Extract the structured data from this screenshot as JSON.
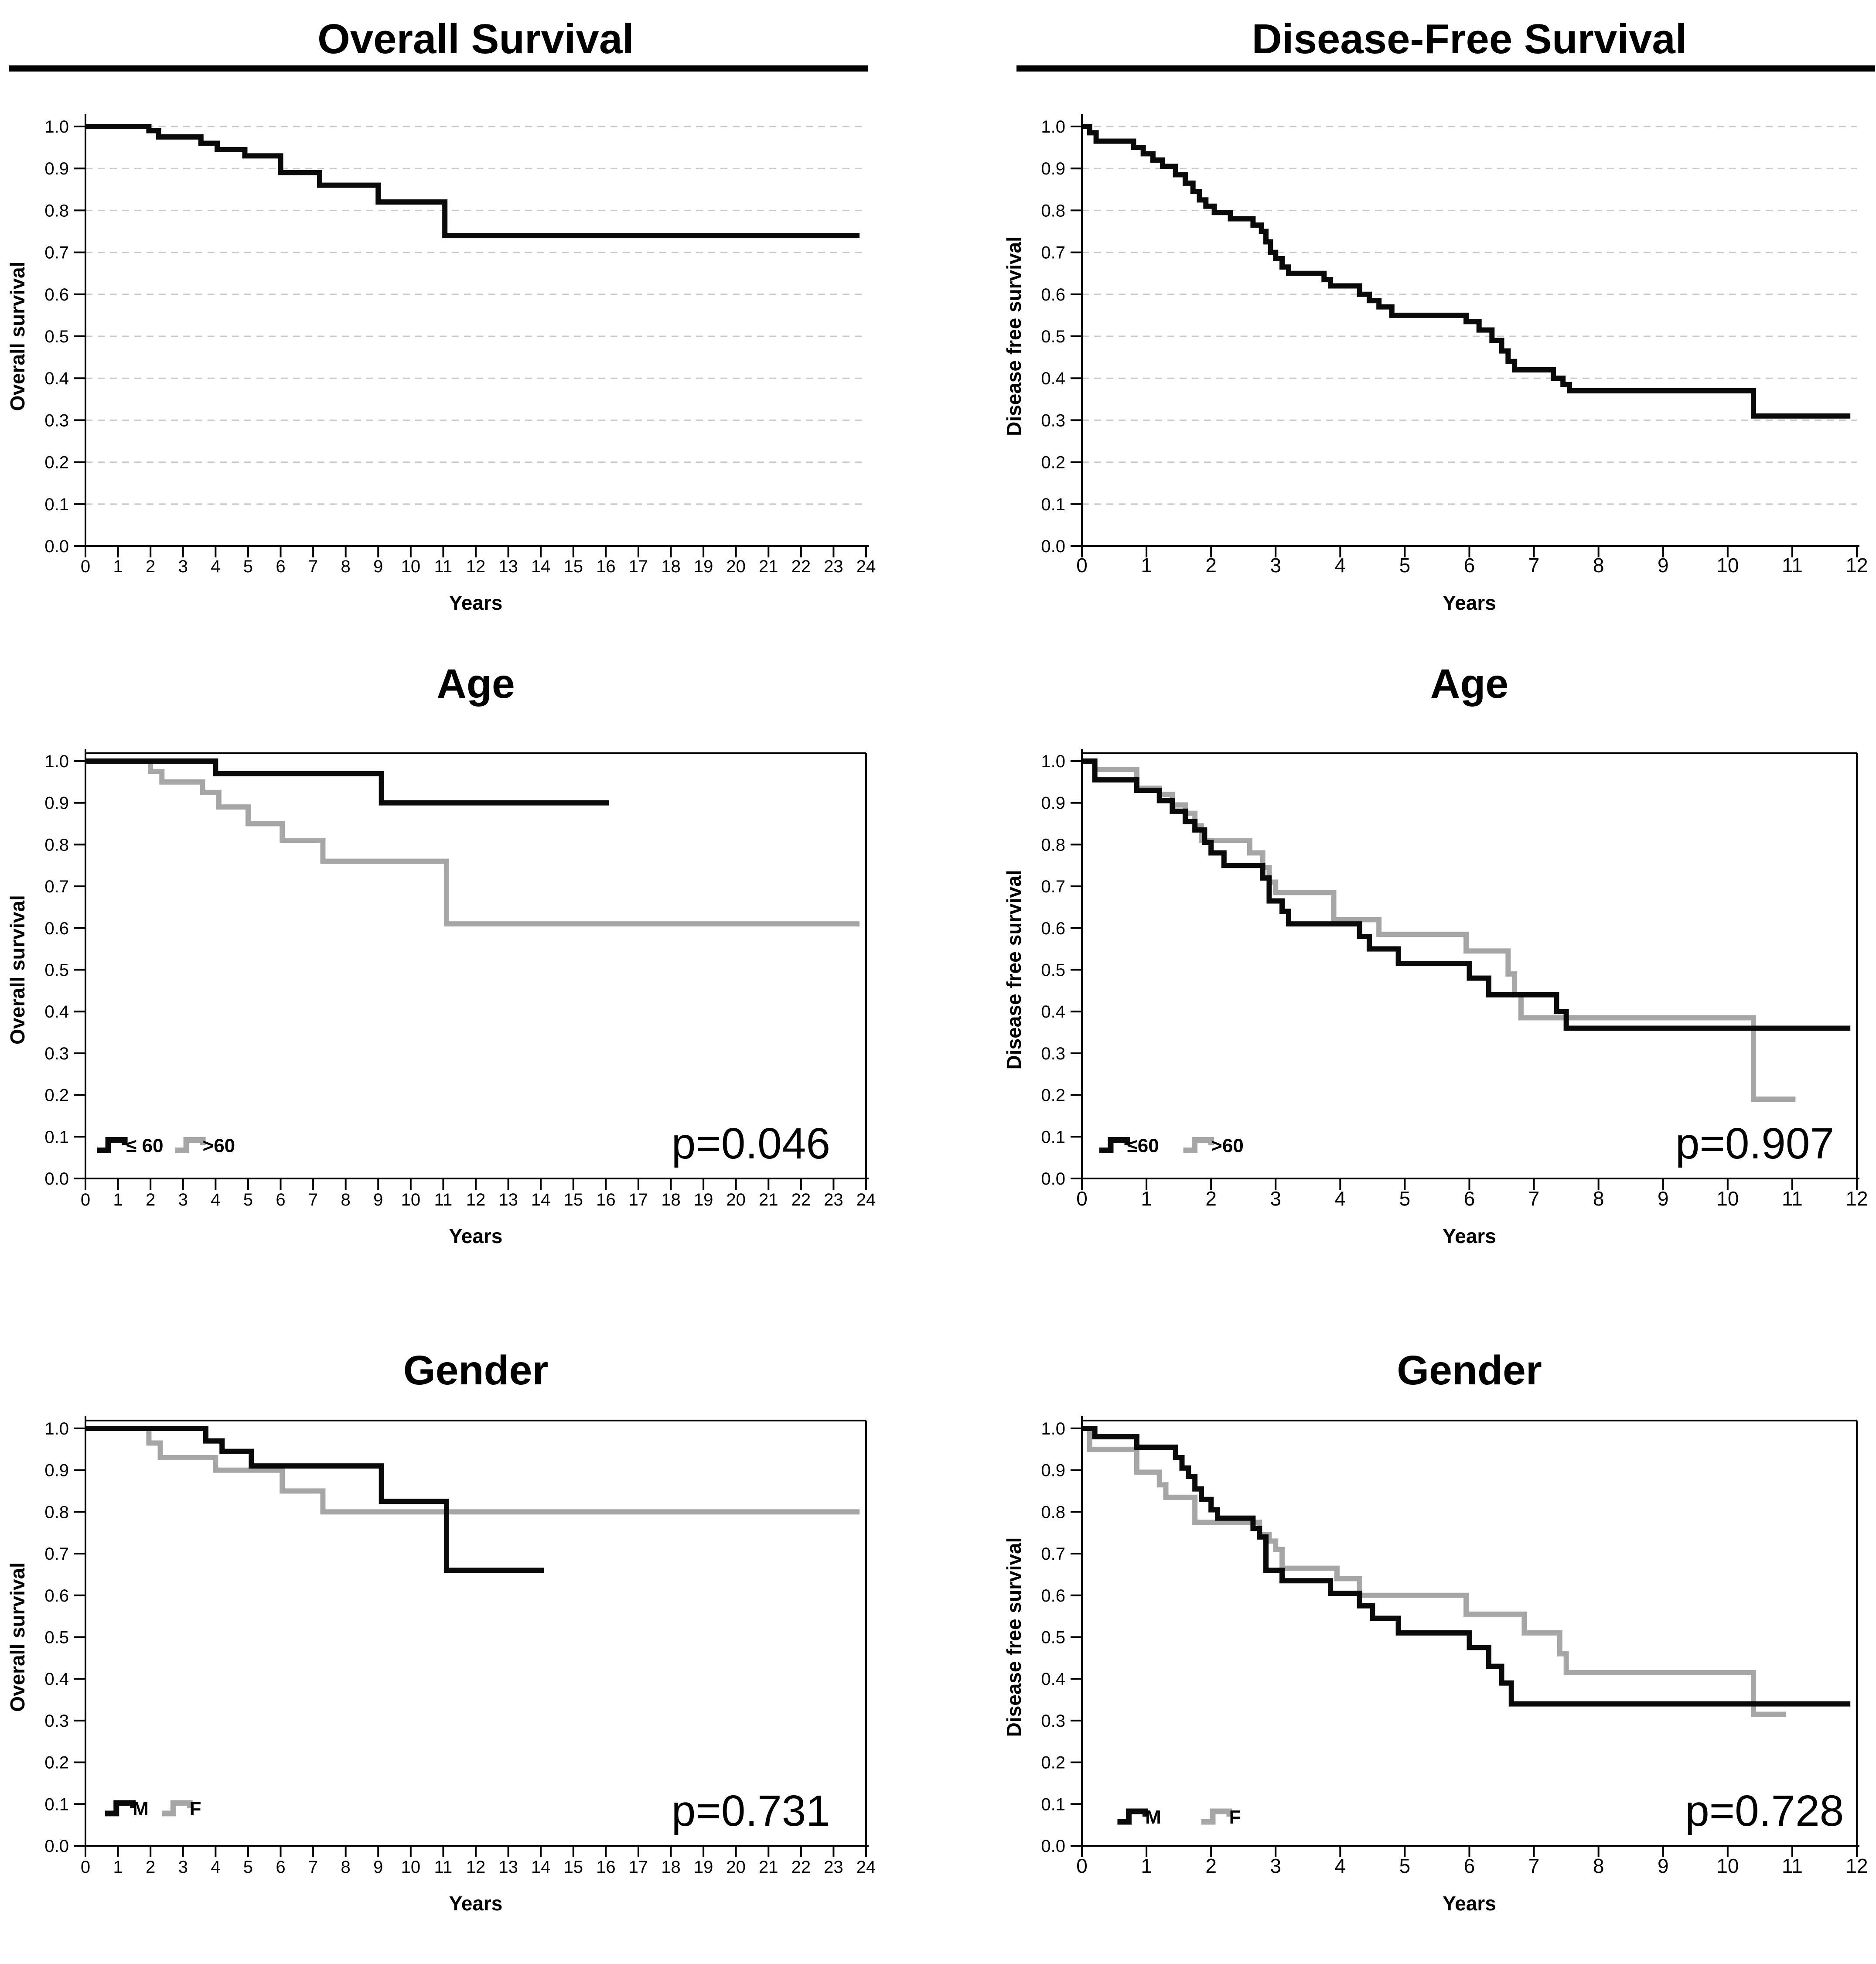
{
  "figure": {
    "background": "#ffffff",
    "colors": {
      "black": "#0a0a0a",
      "gray": "#a6a6a6",
      "grid": "#c9c9c9",
      "axis": "#000000"
    }
  },
  "chart_data": [
    {
      "id": "overall-survival-all",
      "type": "line",
      "title": "Overall Survival",
      "title_rule": true,
      "xlabel": "Years",
      "ylabel": "Overall survival",
      "xlim": [
        0,
        24
      ],
      "ylim": [
        0.0,
        1.0
      ],
      "xticks": [
        0,
        1,
        2,
        3,
        4,
        5,
        6,
        7,
        8,
        9,
        10,
        11,
        12,
        13,
        14,
        15,
        16,
        17,
        18,
        19,
        20,
        21,
        22,
        23,
        24
      ],
      "yticks": [
        "0.0",
        "0.1",
        "0.2",
        "0.3",
        "0.4",
        "0.5",
        "0.6",
        "0.7",
        "0.8",
        "0.9",
        "1.0"
      ],
      "grid": true,
      "frame": false,
      "pvalue": null,
      "legend": null,
      "series": [
        {
          "name": "all-patients",
          "color": "#0a0a0a",
          "end": 23.8,
          "steps": [
            [
              0,
              1.0
            ],
            [
              1.95,
              0.99
            ],
            [
              2.25,
              0.975
            ],
            [
              3.55,
              0.96
            ],
            [
              4.05,
              0.945
            ],
            [
              4.9,
              0.93
            ],
            [
              6.0,
              0.89
            ],
            [
              7.2,
              0.86
            ],
            [
              9.0,
              0.82
            ],
            [
              11.05,
              0.74
            ]
          ]
        }
      ]
    },
    {
      "id": "disease-free-survival-all",
      "type": "line",
      "title": "Disease-Free Survival",
      "title_rule": true,
      "xlabel": "Years",
      "ylabel": "Disease free survival",
      "xlim": [
        0,
        12
      ],
      "ylim": [
        0.0,
        1.0
      ],
      "xticks": [
        0,
        1,
        2,
        3,
        4,
        5,
        6,
        7,
        8,
        9,
        10,
        11,
        12
      ],
      "yticks": [
        "0.0",
        "0.1",
        "0.2",
        "0.3",
        "0.4",
        "0.5",
        "0.6",
        "0.7",
        "0.8",
        "0.9",
        "1.0"
      ],
      "grid": true,
      "frame": false,
      "pvalue": null,
      "legend": null,
      "series": [
        {
          "name": "all-patients",
          "color": "#0a0a0a",
          "end": 11.9,
          "steps": [
            [
              0,
              1.0
            ],
            [
              0.12,
              0.985
            ],
            [
              0.22,
              0.965
            ],
            [
              0.8,
              0.95
            ],
            [
              0.95,
              0.935
            ],
            [
              1.1,
              0.92
            ],
            [
              1.25,
              0.905
            ],
            [
              1.45,
              0.885
            ],
            [
              1.6,
              0.865
            ],
            [
              1.72,
              0.845
            ],
            [
              1.82,
              0.825
            ],
            [
              1.92,
              0.81
            ],
            [
              2.05,
              0.795
            ],
            [
              2.3,
              0.78
            ],
            [
              2.65,
              0.765
            ],
            [
              2.78,
              0.75
            ],
            [
              2.85,
              0.725
            ],
            [
              2.92,
              0.7
            ],
            [
              3.0,
              0.685
            ],
            [
              3.1,
              0.665
            ],
            [
              3.2,
              0.65
            ],
            [
              3.75,
              0.635
            ],
            [
              3.85,
              0.62
            ],
            [
              4.3,
              0.6
            ],
            [
              4.45,
              0.585
            ],
            [
              4.6,
              0.57
            ],
            [
              4.8,
              0.55
            ],
            [
              5.95,
              0.535
            ],
            [
              6.15,
              0.515
            ],
            [
              6.35,
              0.49
            ],
            [
              6.5,
              0.465
            ],
            [
              6.6,
              0.44
            ],
            [
              6.7,
              0.42
            ],
            [
              7.3,
              0.4
            ],
            [
              7.45,
              0.385
            ],
            [
              7.55,
              0.37
            ],
            [
              10.4,
              0.31
            ]
          ]
        }
      ]
    },
    {
      "id": "age-overall-survival",
      "type": "line",
      "title": "Age",
      "title_rule": false,
      "xlabel": "Years",
      "ylabel": "Overall survival",
      "xlim": [
        0,
        24
      ],
      "ylim": [
        0.0,
        1.0
      ],
      "xticks": [
        0,
        1,
        2,
        3,
        4,
        5,
        6,
        7,
        8,
        9,
        10,
        11,
        12,
        13,
        14,
        15,
        16,
        17,
        18,
        19,
        20,
        21,
        22,
        23,
        24
      ],
      "yticks": [
        "0.0",
        "0.1",
        "0.2",
        "0.3",
        "0.4",
        "0.5",
        "0.6",
        "0.7",
        "0.8",
        "0.9",
        "1.0"
      ],
      "grid": false,
      "frame": true,
      "pvalue": {
        "text": "p=0.046",
        "x": 22.9,
        "y": 0.048
      },
      "legend": {
        "y": 0.08,
        "entries": [
          {
            "label": "≤ 60",
            "color": "#0a0a0a",
            "glyph_x": 0.35,
            "text_x": 1.25
          },
          {
            "label": ">60",
            "color": "#a6a6a6",
            "glyph_x": 2.75,
            "text_x": 3.6
          }
        ]
      },
      "series": [
        {
          "name": "over-60",
          "color": "#a6a6a6",
          "end": 23.8,
          "steps": [
            [
              0,
              1.0
            ],
            [
              2.0,
              0.975
            ],
            [
              2.35,
              0.95
            ],
            [
              3.6,
              0.925
            ],
            [
              4.1,
              0.89
            ],
            [
              5.0,
              0.85
            ],
            [
              6.05,
              0.81
            ],
            [
              7.3,
              0.76
            ],
            [
              11.1,
              0.61
            ]
          ]
        },
        {
          "name": "under-or-equal-60",
          "color": "#0a0a0a",
          "end": 16.1,
          "steps": [
            [
              0,
              1.0
            ],
            [
              4.0,
              0.97
            ],
            [
              9.1,
              0.9
            ]
          ]
        }
      ]
    },
    {
      "id": "age-disease-free-survival",
      "type": "line",
      "title": "Age",
      "title_rule": false,
      "xlabel": "Years",
      "ylabel": "Disease free survival",
      "xlim": [
        0,
        12
      ],
      "ylim": [
        0.0,
        1.0
      ],
      "xticks": [
        0,
        1,
        2,
        3,
        4,
        5,
        6,
        7,
        8,
        9,
        10,
        11,
        12
      ],
      "yticks": [
        "0.0",
        "0.1",
        "0.2",
        "0.3",
        "0.4",
        "0.5",
        "0.6",
        "0.7",
        "0.8",
        "0.9",
        "1.0"
      ],
      "grid": false,
      "frame": true,
      "pvalue": {
        "text": "p=0.907",
        "x": 11.65,
        "y": 0.048
      },
      "legend": {
        "y": 0.08,
        "entries": [
          {
            "label": "≤60",
            "color": "#0a0a0a",
            "glyph_x": 0.27,
            "text_x": 0.7
          },
          {
            "label": ">60",
            "color": "#a6a6a6",
            "glyph_x": 1.57,
            "text_x": 2.0
          }
        ]
      },
      "series": [
        {
          "name": "over-60",
          "color": "#a6a6a6",
          "end": 11.05,
          "steps": [
            [
              0,
              1.0
            ],
            [
              0.2,
              0.98
            ],
            [
              0.85,
              0.935
            ],
            [
              1.2,
              0.92
            ],
            [
              1.4,
              0.895
            ],
            [
              1.6,
              0.875
            ],
            [
              1.75,
              0.845
            ],
            [
              1.85,
              0.81
            ],
            [
              2.6,
              0.78
            ],
            [
              2.8,
              0.745
            ],
            [
              2.9,
              0.71
            ],
            [
              3.0,
              0.685
            ],
            [
              3.9,
              0.62
            ],
            [
              4.6,
              0.585
            ],
            [
              5.95,
              0.545
            ],
            [
              6.6,
              0.49
            ],
            [
              6.7,
              0.44
            ],
            [
              6.8,
              0.385
            ],
            [
              10.4,
              0.19
            ]
          ]
        },
        {
          "name": "under-or-equal-60",
          "color": "#0a0a0a",
          "end": 11.9,
          "steps": [
            [
              0,
              1.0
            ],
            [
              0.2,
              0.955
            ],
            [
              0.85,
              0.93
            ],
            [
              1.2,
              0.905
            ],
            [
              1.4,
              0.88
            ],
            [
              1.6,
              0.855
            ],
            [
              1.75,
              0.835
            ],
            [
              1.9,
              0.805
            ],
            [
              2.0,
              0.78
            ],
            [
              2.2,
              0.75
            ],
            [
              2.8,
              0.72
            ],
            [
              2.9,
              0.665
            ],
            [
              3.1,
              0.64
            ],
            [
              3.2,
              0.61
            ],
            [
              4.3,
              0.58
            ],
            [
              4.45,
              0.55
            ],
            [
              4.9,
              0.515
            ],
            [
              6.0,
              0.48
            ],
            [
              6.3,
              0.44
            ],
            [
              7.35,
              0.4
            ],
            [
              7.5,
              0.36
            ]
          ]
        }
      ]
    },
    {
      "id": "gender-overall-survival",
      "type": "line",
      "title": "Gender",
      "title_rule": false,
      "xlabel": "Years",
      "ylabel": "Overall survival",
      "xlim": [
        0,
        24
      ],
      "ylim": [
        0.0,
        1.0
      ],
      "xticks": [
        0,
        1,
        2,
        3,
        4,
        5,
        6,
        7,
        8,
        9,
        10,
        11,
        12,
        13,
        14,
        15,
        16,
        17,
        18,
        19,
        20,
        21,
        22,
        23,
        24
      ],
      "yticks": [
        "0.0",
        "0.1",
        "0.2",
        "0.3",
        "0.4",
        "0.5",
        "0.6",
        "0.7",
        "0.8",
        "0.9",
        "1.0"
      ],
      "grid": false,
      "frame": true,
      "pvalue": {
        "text": "p=0.731",
        "x": 22.9,
        "y": 0.048
      },
      "legend": {
        "y": 0.09,
        "entries": [
          {
            "label": "M",
            "color": "#0a0a0a",
            "glyph_x": 0.6,
            "text_x": 1.45
          },
          {
            "label": "F",
            "color": "#a6a6a6",
            "glyph_x": 2.35,
            "text_x": 3.2
          }
        ]
      },
      "series": [
        {
          "name": "female",
          "color": "#a6a6a6",
          "end": 23.8,
          "steps": [
            [
              0,
              1.0
            ],
            [
              1.95,
              0.965
            ],
            [
              2.3,
              0.93
            ],
            [
              4.0,
              0.9
            ],
            [
              6.05,
              0.85
            ],
            [
              7.3,
              0.8
            ]
          ]
        },
        {
          "name": "male",
          "color": "#0a0a0a",
          "end": 14.1,
          "steps": [
            [
              0,
              1.0
            ],
            [
              3.7,
              0.97
            ],
            [
              4.2,
              0.945
            ],
            [
              5.1,
              0.91
            ],
            [
              9.1,
              0.825
            ],
            [
              11.1,
              0.66
            ]
          ]
        }
      ]
    },
    {
      "id": "gender-disease-free-survival",
      "type": "line",
      "title": "Gender",
      "title_rule": false,
      "xlabel": "Years",
      "ylabel": "Disease free survival",
      "xlim": [
        0,
        12
      ],
      "ylim": [
        0.0,
        1.0
      ],
      "xticks": [
        0,
        1,
        2,
        3,
        4,
        5,
        6,
        7,
        8,
        9,
        10,
        11,
        12
      ],
      "yticks": [
        "0.0",
        "0.1",
        "0.2",
        "0.3",
        "0.4",
        "0.5",
        "0.6",
        "0.7",
        "0.8",
        "0.9",
        "1.0"
      ],
      "grid": false,
      "frame": true,
      "pvalue": {
        "text": "p=0.728",
        "x": 11.8,
        "y": 0.048
      },
      "legend": {
        "y": 0.07,
        "entries": [
          {
            "label": "M",
            "color": "#0a0a0a",
            "glyph_x": 0.55,
            "text_x": 0.98
          },
          {
            "label": "F",
            "color": "#a6a6a6",
            "glyph_x": 1.85,
            "text_x": 2.28
          }
        ]
      },
      "series": [
        {
          "name": "female",
          "color": "#a6a6a6",
          "end": 10.9,
          "steps": [
            [
              0,
              1.0
            ],
            [
              0.12,
              0.95
            ],
            [
              0.85,
              0.895
            ],
            [
              1.2,
              0.865
            ],
            [
              1.3,
              0.835
            ],
            [
              1.75,
              0.775
            ],
            [
              2.75,
              0.745
            ],
            [
              2.9,
              0.73
            ],
            [
              3.0,
              0.71
            ],
            [
              3.1,
              0.665
            ],
            [
              3.95,
              0.64
            ],
            [
              4.3,
              0.6
            ],
            [
              5.95,
              0.555
            ],
            [
              6.85,
              0.51
            ],
            [
              7.4,
              0.46
            ],
            [
              7.5,
              0.415
            ],
            [
              10.4,
              0.315
            ]
          ]
        },
        {
          "name": "male",
          "color": "#0a0a0a",
          "end": 11.9,
          "steps": [
            [
              0,
              1.0
            ],
            [
              0.2,
              0.98
            ],
            [
              0.85,
              0.955
            ],
            [
              1.45,
              0.93
            ],
            [
              1.55,
              0.905
            ],
            [
              1.65,
              0.885
            ],
            [
              1.75,
              0.855
            ],
            [
              1.85,
              0.83
            ],
            [
              2.0,
              0.805
            ],
            [
              2.1,
              0.785
            ],
            [
              2.65,
              0.76
            ],
            [
              2.75,
              0.74
            ],
            [
              2.85,
              0.66
            ],
            [
              3.1,
              0.635
            ],
            [
              3.85,
              0.605
            ],
            [
              4.3,
              0.575
            ],
            [
              4.5,
              0.545
            ],
            [
              4.9,
              0.51
            ],
            [
              6.0,
              0.475
            ],
            [
              6.3,
              0.43
            ],
            [
              6.5,
              0.39
            ],
            [
              6.65,
              0.34
            ]
          ]
        }
      ]
    }
  ]
}
